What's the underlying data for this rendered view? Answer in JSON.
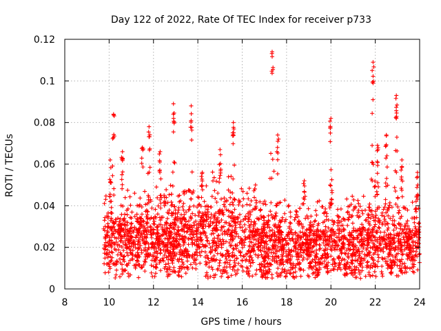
{
  "chart_data": {
    "type": "scatter",
    "title": "Day 122 of 2022, Rate Of TEC Index for receiver p733",
    "xlabel": "GPS time / hours",
    "ylabel": "ROTI / TECUs",
    "xlim": [
      8,
      24
    ],
    "ylim": [
      0,
      0.12
    ],
    "xticks": [
      "8",
      "10",
      "12",
      "14",
      "16",
      "18",
      "20",
      "22",
      "24"
    ],
    "yticks": [
      "0",
      "0.02",
      "0.04",
      "0.06",
      "0.08",
      "0.1",
      "0.12"
    ],
    "grid": true,
    "marker": "+",
    "color": "#ff0000",
    "x_start": 9.75,
    "x_end": 24.0,
    "baseline": [
      [
        9.75,
        0.018
      ],
      [
        10.5,
        0.017
      ],
      [
        11.0,
        0.015
      ],
      [
        12.0,
        0.016
      ],
      [
        13.0,
        0.018
      ],
      [
        14.0,
        0.02
      ],
      [
        15.0,
        0.02
      ],
      [
        16.0,
        0.018
      ],
      [
        17.0,
        0.014
      ],
      [
        18.0,
        0.012
      ],
      [
        19.0,
        0.012
      ],
      [
        20.0,
        0.015
      ],
      [
        21.0,
        0.015
      ],
      [
        22.0,
        0.013
      ],
      [
        23.0,
        0.012
      ],
      [
        24.0,
        0.014
      ]
    ],
    "peaks": [
      {
        "x": 10.2,
        "y": 0.084
      },
      {
        "x": 10.05,
        "y": 0.062
      },
      {
        "x": 10.6,
        "y": 0.066
      },
      {
        "x": 11.5,
        "y": 0.068
      },
      {
        "x": 11.8,
        "y": 0.078
      },
      {
        "x": 12.3,
        "y": 0.066
      },
      {
        "x": 12.9,
        "y": 0.089
      },
      {
        "x": 13.7,
        "y": 0.088
      },
      {
        "x": 14.2,
        "y": 0.056
      },
      {
        "x": 15.0,
        "y": 0.067
      },
      {
        "x": 15.6,
        "y": 0.08
      },
      {
        "x": 16.6,
        "y": 0.05
      },
      {
        "x": 17.35,
        "y": 0.114
      },
      {
        "x": 17.6,
        "y": 0.074
      },
      {
        "x": 18.8,
        "y": 0.052
      },
      {
        "x": 20.0,
        "y": 0.082
      },
      {
        "x": 21.9,
        "y": 0.109
      },
      {
        "x": 22.1,
        "y": 0.069
      },
      {
        "x": 22.5,
        "y": 0.074
      },
      {
        "x": 22.95,
        "y": 0.093
      },
      {
        "x": 23.2,
        "y": 0.062
      },
      {
        "x": 23.9,
        "y": 0.056
      }
    ],
    "point_count": 3000
  }
}
